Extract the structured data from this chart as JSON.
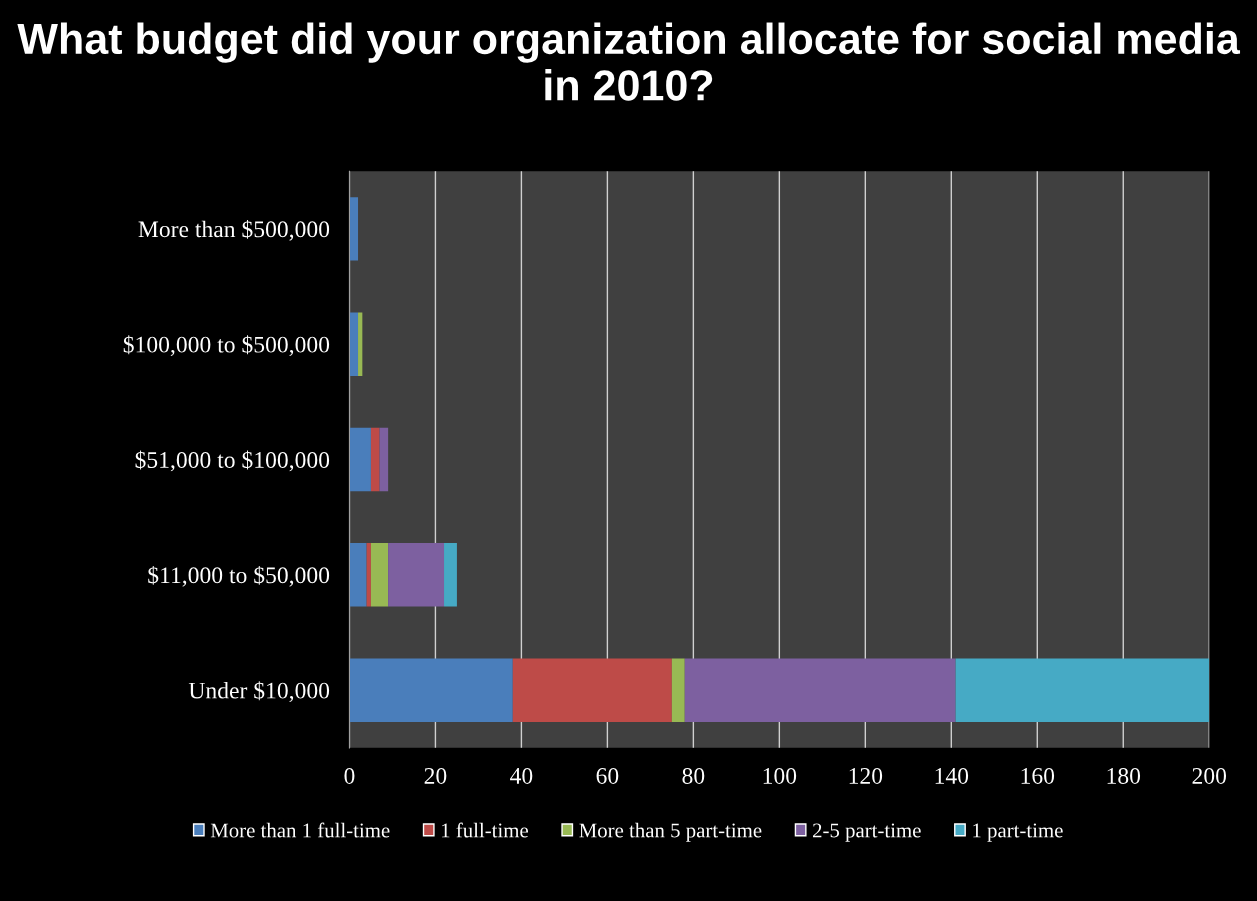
{
  "chart_data": {
    "type": "bar",
    "orientation": "horizontal",
    "stacked": true,
    "title": "What budget did your organization allocate for social media in 2010?",
    "categories": [
      "More than $500,000",
      "$100,000 to $500,000",
      "$51,000 to $100,000",
      "$11,000 to $50,000",
      "Under $10,000"
    ],
    "series": [
      {
        "name": "More than 1 full-time",
        "color": "#4a7ebb",
        "values": [
          2,
          2,
          5,
          4,
          38
        ]
      },
      {
        "name": "1 full-time",
        "color": "#be4b48",
        "values": [
          null,
          null,
          2,
          1,
          37
        ]
      },
      {
        "name": "More than 5 part-time",
        "color": "#98b954",
        "values": [
          null,
          1,
          null,
          4,
          3
        ]
      },
      {
        "name": "2-5 part-time",
        "color": "#7d60a0",
        "values": [
          null,
          null,
          2,
          13,
          63
        ]
      },
      {
        "name": "1 part-time",
        "color": "#46aac5",
        "values": [
          null,
          null,
          null,
          3,
          59
        ]
      }
    ],
    "xlim": [
      0,
      200
    ],
    "xticks": [
      0,
      20,
      40,
      60,
      80,
      100,
      120,
      140,
      160,
      180,
      200
    ],
    "grid": "x",
    "legend": "bottom"
  }
}
